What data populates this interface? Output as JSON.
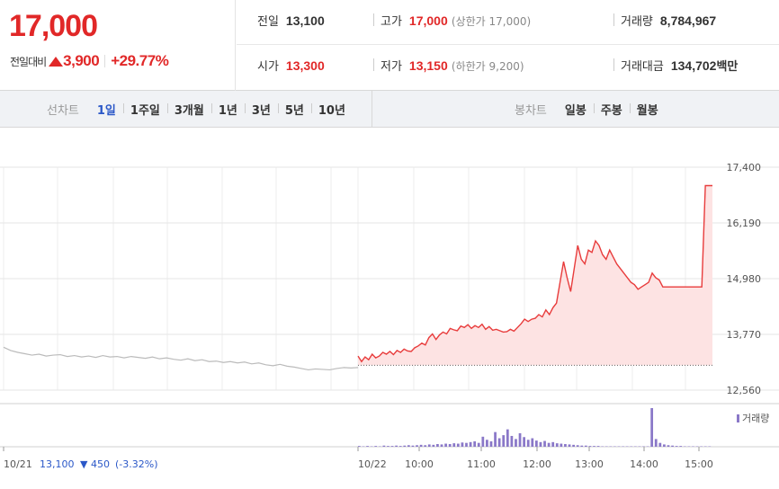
{
  "summary": {
    "price": "17,000",
    "change_label": "전일대비",
    "change_amount": "3,900",
    "change_percent": "+29.77%"
  },
  "stats": {
    "prev_close_label": "전일",
    "prev_close": "13,100",
    "high_label": "고가",
    "high": "17,000",
    "upper_limit": "(상한가 17,000)",
    "volume_label": "거래량",
    "volume": "8,784,967",
    "open_label": "시가",
    "open": "13,300",
    "low_label": "저가",
    "low": "13,150",
    "lower_limit": "(하한가 9,200)",
    "value_label": "거래대금",
    "value": "134,702",
    "value_unit": "백만"
  },
  "toolbar": {
    "line_title": "선차트",
    "line_periods": [
      "1일",
      "1주일",
      "3개월",
      "1년",
      "3년",
      "5년",
      "10년"
    ],
    "active_period": "1일",
    "candle_title": "봉차트",
    "candle_periods": [
      "일봉",
      "주봉",
      "월봉"
    ]
  },
  "chart_data": {
    "type": "line",
    "title": "",
    "ylim": [
      12560,
      17400
    ],
    "y_ticks": [
      "17,400",
      "16,190",
      "14,980",
      "13,770",
      "12,560"
    ],
    "x_labels": [
      "10/21",
      "10/22",
      "10:00",
      "11:00",
      "12:00",
      "13:00",
      "14:00",
      "15:00"
    ],
    "prev_close_value": 13100,
    "series": [
      {
        "name": "10/21",
        "color": "#bbbbbb",
        "x": [
          0,
          2,
          4,
          6,
          8,
          10,
          12,
          14,
          16,
          18,
          20,
          22,
          24,
          26,
          28,
          30,
          32,
          34,
          36,
          38,
          40,
          42,
          44,
          46,
          48,
          50,
          52,
          54,
          56,
          58,
          60,
          62,
          64,
          66,
          68,
          70,
          72,
          74,
          76,
          78,
          80,
          82,
          84,
          86,
          88,
          90,
          92,
          94,
          96,
          98,
          100
        ],
        "values": [
          13490,
          13420,
          13380,
          13350,
          13320,
          13340,
          13300,
          13320,
          13330,
          13290,
          13310,
          13280,
          13300,
          13270,
          13310,
          13280,
          13290,
          13260,
          13290,
          13270,
          13250,
          13280,
          13240,
          13260,
          13230,
          13210,
          13240,
          13200,
          13220,
          13180,
          13190,
          13160,
          13180,
          13150,
          13170,
          13130,
          13150,
          13110,
          13090,
          13120,
          13080,
          13060,
          13030,
          13000,
          13020,
          13010,
          13000,
          13030,
          13050,
          13040,
          13050
        ]
      },
      {
        "name": "10/22",
        "color": "#e83c3c",
        "x": [
          0,
          1,
          2,
          3,
          4,
          5,
          6,
          7,
          8,
          9,
          10,
          11,
          12,
          13,
          14,
          15,
          16,
          17,
          18,
          19,
          20,
          21,
          22,
          23,
          24,
          25,
          26,
          27,
          28,
          29,
          30,
          31,
          32,
          33,
          34,
          35,
          36,
          37,
          38,
          39,
          40,
          41,
          42,
          43,
          44,
          45,
          46,
          47,
          48,
          49,
          50,
          51,
          52,
          53,
          54,
          55,
          56,
          57,
          58,
          59,
          60,
          61,
          62,
          63,
          64,
          65,
          66,
          67,
          68,
          69,
          70,
          71,
          72,
          73,
          74,
          75,
          76,
          77,
          78,
          79,
          80,
          81,
          82,
          83,
          84,
          85,
          86,
          87,
          88,
          89,
          90,
          91,
          92,
          93,
          94,
          95,
          96,
          97,
          98,
          99,
          100
        ],
        "values": [
          13300,
          13180,
          13280,
          13220,
          13340,
          13260,
          13300,
          13380,
          13340,
          13400,
          13330,
          13420,
          13380,
          13450,
          13410,
          13400,
          13480,
          13520,
          13580,
          13540,
          13700,
          13780,
          13660,
          13760,
          13820,
          13780,
          13900,
          13870,
          13850,
          13950,
          13920,
          13980,
          13900,
          13960,
          13920,
          13990,
          13880,
          13940,
          13860,
          13880,
          13850,
          13820,
          13830,
          13880,
          13840,
          13920,
          14000,
          14100,
          14050,
          14100,
          14120,
          14200,
          14150,
          14300,
          14200,
          14350,
          14450,
          14900,
          15350,
          15000,
          14700,
          15200,
          15700,
          15400,
          15300,
          15600,
          15550,
          15800,
          15700,
          15500,
          15400,
          15600,
          15450,
          15300,
          15200,
          15100,
          15000,
          14900,
          14850,
          14750,
          14800,
          14850,
          14900,
          15100,
          15000,
          14950,
          14800,
          14800,
          14800,
          14800,
          14800,
          14800,
          14800,
          14800,
          14800,
          14800,
          14800,
          14800,
          17000,
          17000,
          17000
        ]
      }
    ],
    "volume": {
      "label": "거래량",
      "color": "#8a78c8",
      "values": [
        2,
        1,
        2,
        1,
        2,
        1,
        3,
        2,
        2,
        3,
        2,
        3,
        4,
        3,
        4,
        5,
        4,
        6,
        5,
        7,
        6,
        8,
        7,
        9,
        8,
        11,
        10,
        12,
        14,
        10,
        26,
        18,
        14,
        38,
        22,
        30,
        45,
        28,
        20,
        35,
        25,
        18,
        22,
        16,
        12,
        15,
        10,
        12,
        9,
        8,
        7,
        6,
        5,
        4,
        3,
        3,
        2,
        2,
        2,
        1,
        1,
        1,
        1,
        1,
        1,
        1,
        1,
        1,
        1,
        1,
        1,
        100,
        20,
        10,
        6,
        4,
        3,
        2,
        2,
        1,
        1,
        1,
        1,
        1,
        1,
        1
      ]
    },
    "footer": {
      "prev_date": "10/21",
      "prev_price": "13,100",
      "prev_change": "▼ 450",
      "prev_pct": "(-3.32%)"
    }
  },
  "colors": {
    "up": "#e12828",
    "down": "#2b58c8",
    "fill": "#fde3e3"
  }
}
